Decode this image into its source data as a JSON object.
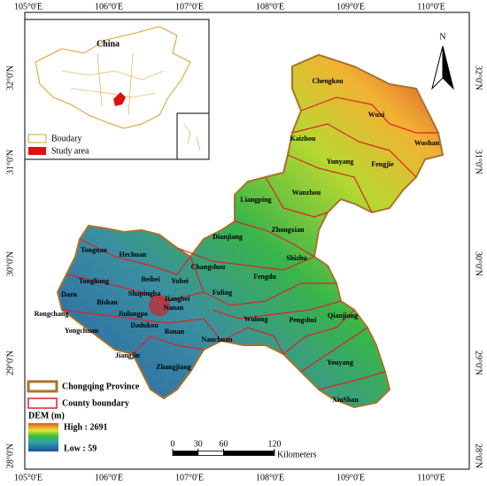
{
  "map": {
    "longitude_labels": [
      "105°0'E",
      "106°0'E",
      "107°0'E",
      "108°0'E",
      "109°0'E",
      "110°0'E"
    ],
    "latitude_labels": [
      "32°0'N",
      "31°0'N",
      "30°0'N",
      "29°0'N",
      "28°0'N"
    ],
    "north": "N",
    "inset": {
      "title": "China",
      "legend": [
        "Boudary",
        "Study area"
      ]
    },
    "legend": {
      "province": "Chongqing Province",
      "county": "County boundary",
      "dem_title": "DEM (m)",
      "high": "High : 2691",
      "low": "Low : 59"
    },
    "scale_bar": {
      "ticks": [
        0,
        30,
        60,
        120
      ],
      "unit": "Kilometers"
    },
    "counties": [
      "Chengkou",
      "Wuxi",
      "Wushan",
      "Kaizhou",
      "Fengjie",
      "Yunyang",
      "Wanzhou",
      "Liangping",
      "Zhongxian",
      "Dianjiang",
      "Shizhu",
      "Tongnan",
      "Hechuan",
      "Changshou",
      "Fengdu",
      "Tongliang",
      "Beibei",
      "Yubei",
      "Dazu",
      "Shapingba",
      "Jiangbei",
      "Bishan",
      "Fuling",
      "Nanan",
      "Rongchang",
      "Jiulongpo",
      "Dadukou",
      "Wulong",
      "Pengshui",
      "Qianjiang",
      "Yongchuan",
      "Banan",
      "Nanchuan",
      "Jiangjin",
      "Zhangjiang",
      "Youyang",
      "XiuShan"
    ]
  }
}
